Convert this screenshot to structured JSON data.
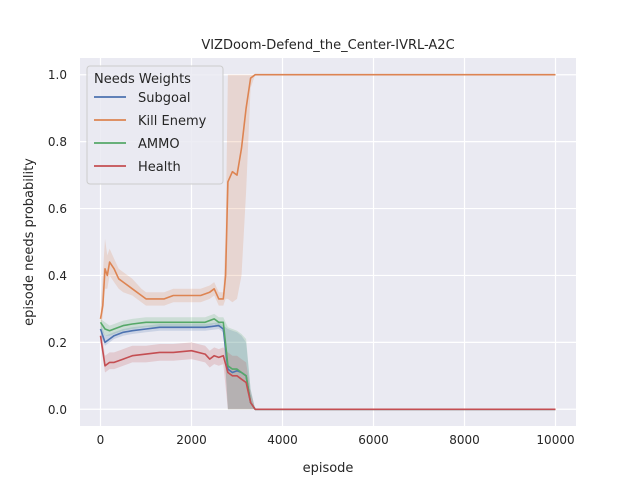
{
  "chart_data": {
    "type": "line",
    "title": "VIZDoom-Defend_the_Center-IVRL-A2C",
    "xlabel": "episode",
    "ylabel": "episode needs probability",
    "xlim": [
      -450,
      10450
    ],
    "ylim": [
      -0.05,
      1.05
    ],
    "xticks": [
      0,
      2000,
      4000,
      6000,
      8000,
      10000
    ],
    "yticks": [
      0.0,
      0.2,
      0.4,
      0.6,
      0.8,
      1.0
    ],
    "xtick_labels": [
      "0",
      "2000",
      "4000",
      "6000",
      "8000",
      "10000"
    ],
    "ytick_labels": [
      "0.0",
      "0.2",
      "0.4",
      "0.6",
      "0.8",
      "1.0"
    ],
    "grid": true,
    "legend_title": "Needs Weights",
    "legend_position": "top-left",
    "series": [
      {
        "name": "Subgoal",
        "color": "#4c72b0",
        "x": [
          0,
          100,
          200,
          300,
          500,
          700,
          1000,
          1300,
          1600,
          2000,
          2300,
          2600,
          2700,
          2800,
          2900,
          3000,
          3100,
          3200,
          3300,
          3400,
          4000,
          6000,
          8000,
          10000
        ],
        "y": [
          0.24,
          0.2,
          0.21,
          0.22,
          0.23,
          0.235,
          0.24,
          0.245,
          0.245,
          0.245,
          0.245,
          0.25,
          0.24,
          0.12,
          0.11,
          0.115,
          0.11,
          0.1,
          0.02,
          0.0,
          0.0,
          0.0,
          0.0,
          0.0
        ],
        "band": [
          [
            0.26,
            0.22
          ],
          [
            0.22,
            0.19
          ],
          [
            0.225,
            0.2
          ],
          [
            0.23,
            0.21
          ],
          [
            0.24,
            0.22
          ],
          [
            0.245,
            0.225
          ],
          [
            0.25,
            0.23
          ],
          [
            0.255,
            0.235
          ],
          [
            0.255,
            0.235
          ],
          [
            0.255,
            0.235
          ],
          [
            0.255,
            0.235
          ],
          [
            0.26,
            0.24
          ],
          [
            0.25,
            0.23
          ],
          [
            0.24,
            0.0
          ],
          [
            0.235,
            0.0
          ],
          [
            0.23,
            0.0
          ],
          [
            0.22,
            0.0
          ],
          [
            0.2,
            0.0
          ],
          [
            0.06,
            0.0
          ],
          [
            0.0,
            0.0
          ],
          [
            0.0,
            0.0
          ],
          [
            0.0,
            0.0
          ],
          [
            0.0,
            0.0
          ],
          [
            0.0,
            0.0
          ]
        ]
      },
      {
        "name": "Kill Enemy",
        "color": "#dd8452",
        "x": [
          0,
          50,
          100,
          150,
          200,
          300,
          400,
          500,
          700,
          900,
          1000,
          1200,
          1400,
          1600,
          1800,
          2000,
          2200,
          2400,
          2500,
          2600,
          2700,
          2750,
          2800,
          2900,
          3000,
          3100,
          3200,
          3300,
          3400,
          4000,
          6000,
          8000,
          10000
        ],
        "y": [
          0.27,
          0.31,
          0.42,
          0.4,
          0.44,
          0.42,
          0.39,
          0.38,
          0.36,
          0.34,
          0.33,
          0.33,
          0.33,
          0.34,
          0.34,
          0.34,
          0.34,
          0.35,
          0.36,
          0.33,
          0.33,
          0.4,
          0.68,
          0.71,
          0.7,
          0.78,
          0.9,
          0.99,
          1.0,
          1.0,
          1.0,
          1.0,
          1.0
        ],
        "band": [
          [
            0.3,
            0.24
          ],
          [
            0.4,
            0.28
          ],
          [
            0.51,
            0.36
          ],
          [
            0.46,
            0.36
          ],
          [
            0.48,
            0.4
          ],
          [
            0.45,
            0.38
          ],
          [
            0.42,
            0.36
          ],
          [
            0.41,
            0.35
          ],
          [
            0.39,
            0.34
          ],
          [
            0.36,
            0.32
          ],
          [
            0.35,
            0.31
          ],
          [
            0.35,
            0.31
          ],
          [
            0.35,
            0.31
          ],
          [
            0.36,
            0.32
          ],
          [
            0.36,
            0.32
          ],
          [
            0.36,
            0.32
          ],
          [
            0.36,
            0.32
          ],
          [
            0.37,
            0.33
          ],
          [
            0.38,
            0.34
          ],
          [
            0.35,
            0.31
          ],
          [
            0.35,
            0.31
          ],
          [
            0.52,
            0.33
          ],
          [
            1.0,
            0.33
          ],
          [
            1.0,
            0.32
          ],
          [
            1.0,
            0.33
          ],
          [
            1.0,
            0.4
          ],
          [
            1.0,
            0.65
          ],
          [
            1.0,
            0.96
          ],
          [
            1.0,
            1.0
          ],
          [
            1.0,
            1.0
          ],
          [
            1.0,
            1.0
          ],
          [
            1.0,
            1.0
          ],
          [
            1.0,
            1.0
          ]
        ]
      },
      {
        "name": "AMMO",
        "color": "#55a868",
        "x": [
          0,
          100,
          200,
          300,
          500,
          700,
          1000,
          1300,
          1600,
          2000,
          2300,
          2500,
          2600,
          2700,
          2800,
          2900,
          3000,
          3100,
          3200,
          3300,
          3400,
          4000,
          6000,
          8000,
          10000
        ],
        "y": [
          0.26,
          0.24,
          0.235,
          0.24,
          0.25,
          0.255,
          0.26,
          0.26,
          0.26,
          0.26,
          0.26,
          0.27,
          0.26,
          0.26,
          0.13,
          0.12,
          0.12,
          0.11,
          0.1,
          0.02,
          0.0,
          0.0,
          0.0,
          0.0,
          0.0
        ],
        "band": [
          [
            0.27,
            0.24
          ],
          [
            0.26,
            0.22
          ],
          [
            0.25,
            0.22
          ],
          [
            0.255,
            0.225
          ],
          [
            0.265,
            0.235
          ],
          [
            0.27,
            0.24
          ],
          [
            0.275,
            0.245
          ],
          [
            0.275,
            0.245
          ],
          [
            0.275,
            0.245
          ],
          [
            0.275,
            0.245
          ],
          [
            0.275,
            0.245
          ],
          [
            0.285,
            0.255
          ],
          [
            0.275,
            0.245
          ],
          [
            0.275,
            0.245
          ],
          [
            0.245,
            0.0
          ],
          [
            0.24,
            0.0
          ],
          [
            0.235,
            0.0
          ],
          [
            0.225,
            0.0
          ],
          [
            0.21,
            0.0
          ],
          [
            0.06,
            0.0
          ],
          [
            0.0,
            0.0
          ],
          [
            0.0,
            0.0
          ],
          [
            0.0,
            0.0
          ],
          [
            0.0,
            0.0
          ],
          [
            0.0,
            0.0
          ]
        ]
      },
      {
        "name": "Health",
        "color": "#c44e52",
        "x": [
          0,
          100,
          200,
          300,
          500,
          700,
          1000,
          1300,
          1600,
          2000,
          2300,
          2400,
          2500,
          2600,
          2700,
          2800,
          2900,
          3000,
          3100,
          3200,
          3300,
          3400,
          4000,
          6000,
          8000,
          10000
        ],
        "y": [
          0.22,
          0.13,
          0.14,
          0.14,
          0.15,
          0.16,
          0.165,
          0.17,
          0.17,
          0.175,
          0.165,
          0.15,
          0.16,
          0.155,
          0.16,
          0.11,
          0.1,
          0.1,
          0.09,
          0.08,
          0.02,
          0.0,
          0.0,
          0.0,
          0.0,
          0.0
        ],
        "band": [
          [
            0.25,
            0.2
          ],
          [
            0.16,
            0.11
          ],
          [
            0.17,
            0.12
          ],
          [
            0.17,
            0.12
          ],
          [
            0.18,
            0.13
          ],
          [
            0.19,
            0.14
          ],
          [
            0.19,
            0.14
          ],
          [
            0.195,
            0.145
          ],
          [
            0.195,
            0.145
          ],
          [
            0.2,
            0.15
          ],
          [
            0.19,
            0.14
          ],
          [
            0.175,
            0.125
          ],
          [
            0.185,
            0.135
          ],
          [
            0.18,
            0.13
          ],
          [
            0.185,
            0.135
          ],
          [
            0.17,
            0.0
          ],
          [
            0.16,
            0.0
          ],
          [
            0.16,
            0.0
          ],
          [
            0.15,
            0.0
          ],
          [
            0.14,
            0.0
          ],
          [
            0.05,
            0.0
          ],
          [
            0.0,
            0.0
          ],
          [
            0.0,
            0.0
          ],
          [
            0.0,
            0.0
          ],
          [
            0.0,
            0.0
          ],
          [
            0.0,
            0.0
          ]
        ]
      }
    ]
  }
}
